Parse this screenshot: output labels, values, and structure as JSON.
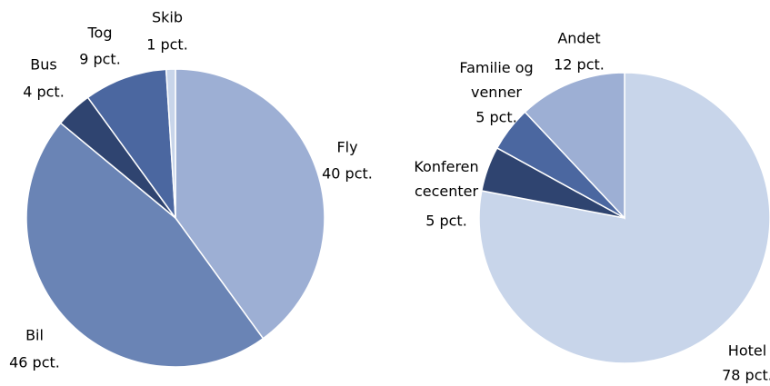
{
  "chart_data": [
    {
      "type": "pie",
      "categories": [
        "Fly",
        "Bil",
        "Bus",
        "Tog",
        "Skib"
      ],
      "values": [
        40,
        46,
        4,
        9,
        1
      ],
      "value_labels": [
        "40 pct.",
        "46 pct.",
        "4 pct.",
        "9 pct.",
        "1 pct."
      ],
      "colors": [
        "#9dafd4",
        "#6a84b5",
        "#2f4470",
        "#4b67a0",
        "#c8d5ea"
      ]
    },
    {
      "type": "pie",
      "categories": [
        "Hotel",
        "Konferen\ncecenter",
        "Familie og\nvenner",
        "Andet"
      ],
      "values": [
        78,
        5,
        5,
        12
      ],
      "value_labels": [
        "78 pct.",
        "5 pct.",
        "5 pct.",
        "12 pct."
      ],
      "colors": [
        "#c8d5ea",
        "#2f4470",
        "#4b67a0",
        "#9dafd4"
      ]
    }
  ]
}
